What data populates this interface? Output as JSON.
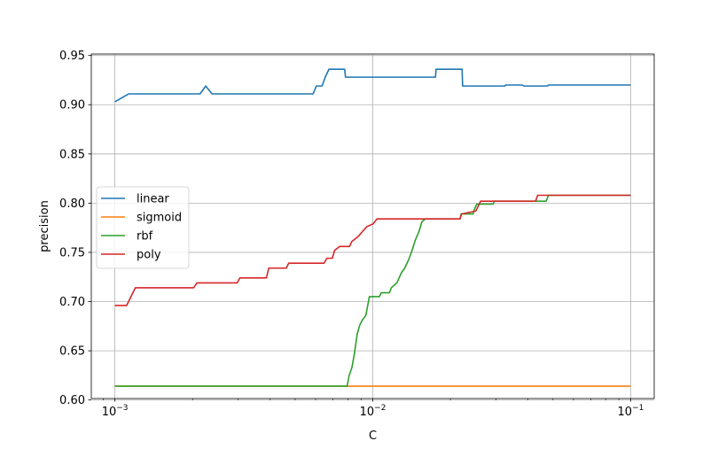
{
  "chart_data": {
    "type": "line",
    "title": "",
    "xlabel": "C",
    "ylabel": "precision",
    "xscale": "log",
    "xlim": [
      0.00081,
      0.1234
    ],
    "ylim": [
      0.6015,
      0.9515
    ],
    "x_ticks": [
      {
        "value": 0.001,
        "label": "10",
        "exp": "−3"
      },
      {
        "value": 0.01,
        "label": "10",
        "exp": "−2"
      },
      {
        "value": 0.1,
        "label": "10",
        "exp": "−1"
      }
    ],
    "y_ticks": [
      "0.60",
      "0.65",
      "0.70",
      "0.75",
      "0.80",
      "0.85",
      "0.90",
      "0.95"
    ],
    "grid": true,
    "legend_position": "center-left",
    "series": [
      {
        "name": "linear",
        "color": "#1f77b4",
        "points": [
          [
            0.001,
            0.903
          ],
          [
            0.00113,
            0.911
          ],
          [
            0.00214,
            0.911
          ],
          [
            0.00225,
            0.919
          ],
          [
            0.00238,
            0.911
          ],
          [
            0.00587,
            0.911
          ],
          [
            0.00604,
            0.919
          ],
          [
            0.00636,
            0.919
          ],
          [
            0.00654,
            0.928
          ],
          [
            0.00676,
            0.936
          ],
          [
            0.00778,
            0.936
          ],
          [
            0.00784,
            0.928
          ],
          [
            0.0175,
            0.928
          ],
          [
            0.0176,
            0.936
          ],
          [
            0.0222,
            0.936
          ],
          [
            0.0223,
            0.919
          ],
          [
            0.0325,
            0.919
          ],
          [
            0.0328,
            0.92
          ],
          [
            0.038,
            0.92
          ],
          [
            0.0385,
            0.919
          ],
          [
            0.0475,
            0.919
          ],
          [
            0.048,
            0.92
          ],
          [
            0.1,
            0.92
          ]
        ]
      },
      {
        "name": "sigmoid",
        "color": "#ff7f0e",
        "points": [
          [
            0.001,
            0.614
          ],
          [
            0.1,
            0.614
          ]
        ]
      },
      {
        "name": "rbf",
        "color": "#2ca02c",
        "points": [
          [
            0.001,
            0.614
          ],
          [
            0.00795,
            0.614
          ],
          [
            0.0081,
            0.625
          ],
          [
            0.0083,
            0.633
          ],
          [
            0.0085,
            0.648
          ],
          [
            0.0087,
            0.667
          ],
          [
            0.0089,
            0.676
          ],
          [
            0.0091,
            0.681
          ],
          [
            0.0094,
            0.686
          ],
          [
            0.0097,
            0.705
          ],
          [
            0.0106,
            0.705
          ],
          [
            0.0108,
            0.709
          ],
          [
            0.0116,
            0.709
          ],
          [
            0.0118,
            0.714
          ],
          [
            0.0124,
            0.719
          ],
          [
            0.0129,
            0.729
          ],
          [
            0.0133,
            0.734
          ],
          [
            0.0138,
            0.743
          ],
          [
            0.0142,
            0.752
          ],
          [
            0.0146,
            0.762
          ],
          [
            0.0151,
            0.771
          ],
          [
            0.0155,
            0.781
          ],
          [
            0.016,
            0.784
          ],
          [
            0.0218,
            0.784
          ],
          [
            0.022,
            0.789
          ],
          [
            0.0245,
            0.789
          ],
          [
            0.0248,
            0.794
          ],
          [
            0.0253,
            0.799
          ],
          [
            0.0293,
            0.799
          ],
          [
            0.0296,
            0.802
          ],
          [
            0.047,
            0.802
          ],
          [
            0.048,
            0.808
          ],
          [
            0.1,
            0.808
          ]
        ]
      },
      {
        "name": "poly",
        "color": "#d62728",
        "points": [
          [
            0.001,
            0.696
          ],
          [
            0.00111,
            0.696
          ],
          [
            0.0012,
            0.714
          ],
          [
            0.00202,
            0.714
          ],
          [
            0.00208,
            0.719
          ],
          [
            0.00298,
            0.719
          ],
          [
            0.00305,
            0.724
          ],
          [
            0.00387,
            0.724
          ],
          [
            0.00395,
            0.734
          ],
          [
            0.00462,
            0.734
          ],
          [
            0.00472,
            0.739
          ],
          [
            0.00647,
            0.739
          ],
          [
            0.00664,
            0.744
          ],
          [
            0.00697,
            0.744
          ],
          [
            0.00711,
            0.752
          ],
          [
            0.00744,
            0.756
          ],
          [
            0.00813,
            0.756
          ],
          [
            0.00829,
            0.761
          ],
          [
            0.00877,
            0.766
          ],
          [
            0.00911,
            0.771
          ],
          [
            0.00947,
            0.776
          ],
          [
            0.01003,
            0.779
          ],
          [
            0.01039,
            0.784
          ],
          [
            0.0218,
            0.784
          ],
          [
            0.0221,
            0.789
          ],
          [
            0.0251,
            0.792
          ],
          [
            0.0262,
            0.802
          ],
          [
            0.0428,
            0.802
          ],
          [
            0.0436,
            0.808
          ],
          [
            0.1,
            0.808
          ]
        ]
      }
    ]
  }
}
